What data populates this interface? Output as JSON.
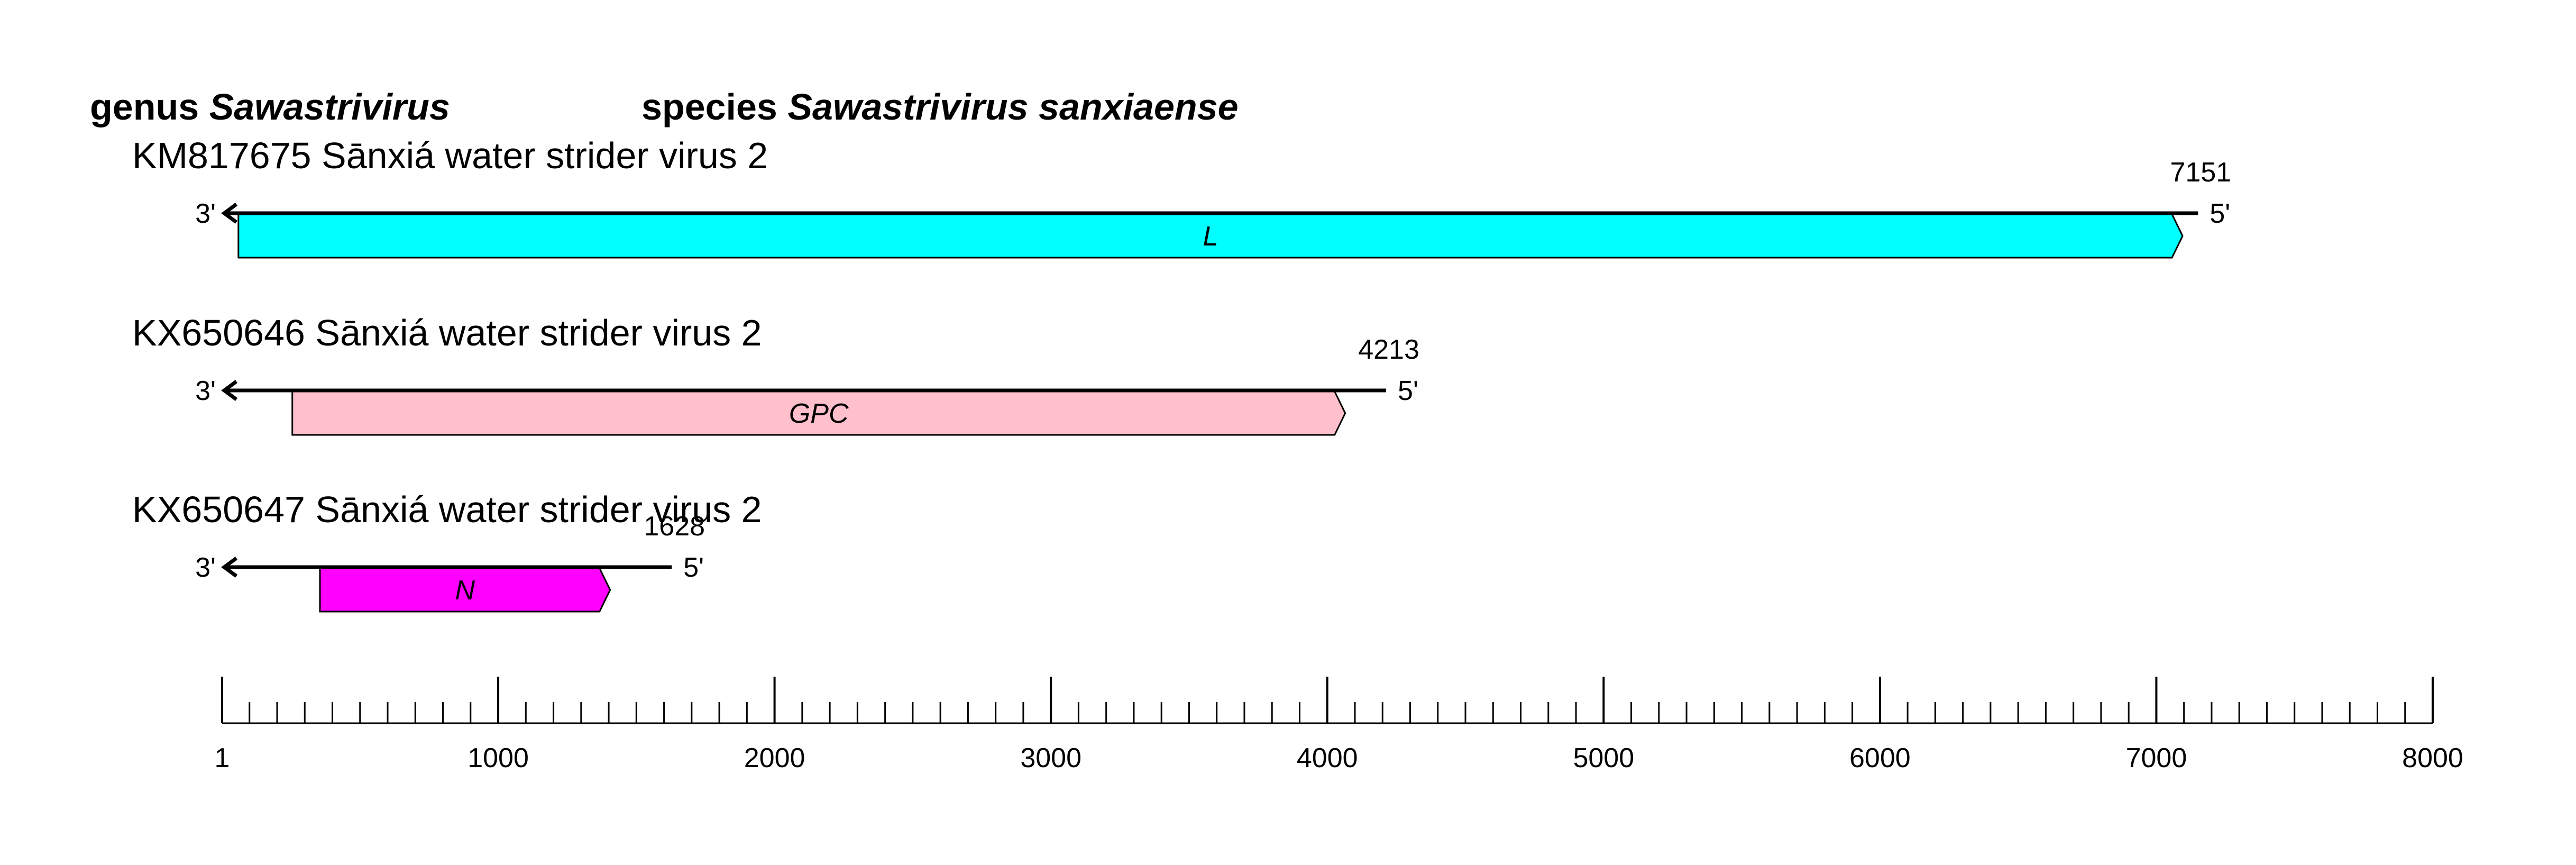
{
  "header": {
    "genus_label": "genus",
    "genus_name": "Sawastrivirus",
    "species_label": "species",
    "species_name": "Sawastrivirus sanxiaense"
  },
  "segments": [
    {
      "title": "KM817675 Sānxiá water strider virus 2",
      "length": 7151,
      "length_label": "7151",
      "end3": "3'",
      "end5": "5'",
      "gene": {
        "name": "L",
        "start": 60,
        "end": 7095,
        "color": "#00FFFF"
      }
    },
    {
      "title": "KX650646 Sānxiá water strider virus 2",
      "length": 4213,
      "length_label": "4213",
      "end3": "3'",
      "end5": "5'",
      "gene": {
        "name": "GPC",
        "start": 255,
        "end": 4065,
        "color": "#FFC0CB"
      }
    },
    {
      "title": "KX650647 Sānxiá water strider virus 2",
      "length": 1628,
      "length_label": "1628",
      "end3": "3'",
      "end5": "5'",
      "gene": {
        "name": "N",
        "start": 355,
        "end": 1405,
        "color": "#FF00FF"
      }
    }
  ],
  "scale": {
    "min": 1,
    "max": 8000,
    "major_step": 1000,
    "minor_step": 100,
    "labels": [
      "1",
      "1000",
      "2000",
      "3000",
      "4000",
      "5000",
      "6000",
      "7000",
      "8000"
    ]
  }
}
